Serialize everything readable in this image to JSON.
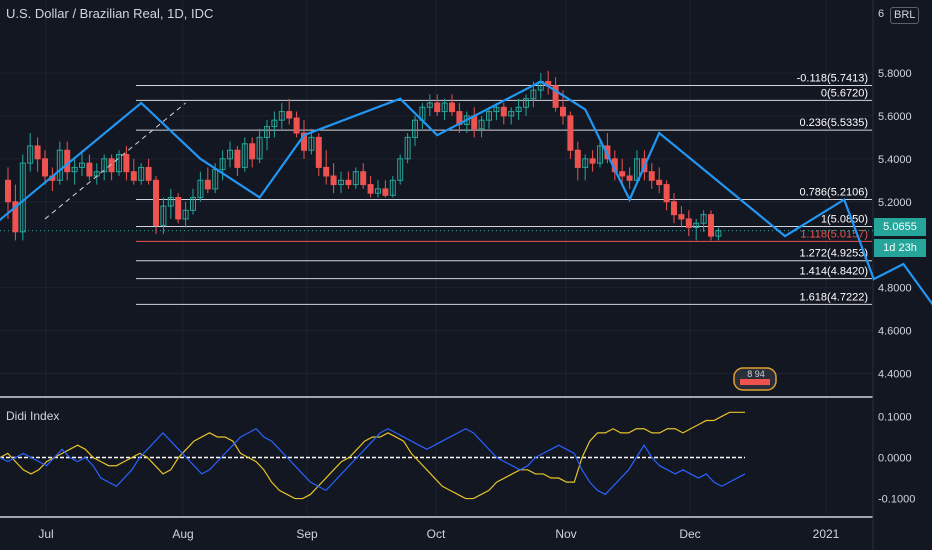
{
  "header": {
    "title": "U.S. Dollar / Brazilian Real, 1D, IDC",
    "currency": "BRL",
    "partial_glyph": "6"
  },
  "indicator": {
    "name": "Didi Index"
  },
  "price_tags": {
    "last": "5.0655",
    "countdown": "1d 23h"
  },
  "badge_text": "8 94",
  "colors": {
    "background": "#131722",
    "up": "#26a69a",
    "down": "#ef5350",
    "pattern": "#2196f3",
    "fib": "#d1d4dc",
    "last_price": "#26a69a",
    "didi_fast": "#e6c229",
    "didi_slow": "#2962ff",
    "separator": "#d1d4dc"
  },
  "chart_data": [
    {
      "type": "candlestick",
      "title": "U.S. Dollar / Brazilian Real, 1D, IDC",
      "ylim": [
        4.3,
        6.0
      ],
      "y_ticks": [
        "5.8000",
        "5.6000",
        "5.4000",
        "5.2000",
        "4.8000",
        "4.6000",
        "4.4000"
      ],
      "x_labels": [
        "Jul",
        "Aug",
        "Sep",
        "Oct",
        "Nov",
        "Dec",
        "2021"
      ],
      "ohlc": [
        [
          5.3,
          5.36,
          5.12,
          5.2
        ],
        [
          5.2,
          5.28,
          5.02,
          5.06
        ],
        [
          5.06,
          5.42,
          5.02,
          5.38
        ],
        [
          5.38,
          5.52,
          5.34,
          5.46
        ],
        [
          5.46,
          5.5,
          5.34,
          5.4
        ],
        [
          5.4,
          5.44,
          5.28,
          5.32
        ],
        [
          5.32,
          5.36,
          5.25,
          5.3
        ],
        [
          5.3,
          5.48,
          5.28,
          5.44
        ],
        [
          5.44,
          5.48,
          5.3,
          5.34
        ],
        [
          5.34,
          5.4,
          5.28,
          5.36
        ],
        [
          5.36,
          5.44,
          5.32,
          5.38
        ],
        [
          5.38,
          5.42,
          5.3,
          5.32
        ],
        [
          5.32,
          5.38,
          5.28,
          5.34
        ],
        [
          5.34,
          5.42,
          5.3,
          5.4
        ],
        [
          5.4,
          5.42,
          5.3,
          5.34
        ],
        [
          5.34,
          5.44,
          5.32,
          5.42
        ],
        [
          5.42,
          5.46,
          5.3,
          5.34
        ],
        [
          5.34,
          5.4,
          5.28,
          5.3
        ],
        [
          5.3,
          5.38,
          5.28,
          5.36
        ],
        [
          5.36,
          5.4,
          5.28,
          5.3
        ],
        [
          5.3,
          5.32,
          5.05,
          5.09
        ],
        [
          5.09,
          5.22,
          5.05,
          5.18
        ],
        [
          5.18,
          5.26,
          5.12,
          5.22
        ],
        [
          5.22,
          5.24,
          5.1,
          5.12
        ],
        [
          5.12,
          5.2,
          5.08,
          5.16
        ],
        [
          5.16,
          5.26,
          5.14,
          5.22
        ],
        [
          5.22,
          5.34,
          5.2,
          5.3
        ],
        [
          5.3,
          5.36,
          5.24,
          5.26
        ],
        [
          5.26,
          5.38,
          5.24,
          5.35
        ],
        [
          5.35,
          5.44,
          5.3,
          5.4
        ],
        [
          5.4,
          5.48,
          5.36,
          5.44
        ],
        [
          5.44,
          5.46,
          5.32,
          5.36
        ],
        [
          5.36,
          5.5,
          5.34,
          5.47
        ],
        [
          5.47,
          5.5,
          5.36,
          5.4
        ],
        [
          5.4,
          5.54,
          5.38,
          5.5
        ],
        [
          5.5,
          5.58,
          5.44,
          5.55
        ],
        [
          5.55,
          5.62,
          5.5,
          5.58
        ],
        [
          5.58,
          5.66,
          5.54,
          5.62
        ],
        [
          5.62,
          5.68,
          5.56,
          5.59
        ],
        [
          5.59,
          5.62,
          5.5,
          5.52
        ],
        [
          5.52,
          5.58,
          5.4,
          5.44
        ],
        [
          5.44,
          5.54,
          5.42,
          5.5
        ],
        [
          5.5,
          5.52,
          5.32,
          5.36
        ],
        [
          5.36,
          5.44,
          5.28,
          5.32
        ],
        [
          5.32,
          5.38,
          5.24,
          5.28
        ],
        [
          5.28,
          5.34,
          5.24,
          5.3
        ],
        [
          5.3,
          5.34,
          5.26,
          5.28
        ],
        [
          5.28,
          5.36,
          5.26,
          5.34
        ],
        [
          5.34,
          5.38,
          5.26,
          5.28
        ],
        [
          5.28,
          5.32,
          5.22,
          5.24
        ],
        [
          5.24,
          5.3,
          5.22,
          5.26
        ],
        [
          5.26,
          5.3,
          5.22,
          5.23
        ],
        [
          5.23,
          5.32,
          5.22,
          5.3
        ],
        [
          5.3,
          5.42,
          5.28,
          5.4
        ],
        [
          5.4,
          5.52,
          5.38,
          5.5
        ],
        [
          5.5,
          5.6,
          5.46,
          5.58
        ],
        [
          5.58,
          5.66,
          5.54,
          5.64
        ],
        [
          5.64,
          5.7,
          5.6,
          5.66
        ],
        [
          5.66,
          5.7,
          5.6,
          5.62
        ],
        [
          5.62,
          5.68,
          5.58,
          5.66
        ],
        [
          5.66,
          5.7,
          5.6,
          5.62
        ],
        [
          5.62,
          5.66,
          5.52,
          5.56
        ],
        [
          5.56,
          5.62,
          5.52,
          5.6
        ],
        [
          5.6,
          5.64,
          5.5,
          5.54
        ],
        [
          5.54,
          5.6,
          5.5,
          5.58
        ],
        [
          5.58,
          5.64,
          5.54,
          5.62
        ],
        [
          5.62,
          5.66,
          5.58,
          5.64
        ],
        [
          5.64,
          5.66,
          5.56,
          5.6
        ],
        [
          5.6,
          5.64,
          5.56,
          5.62
        ],
        [
          5.62,
          5.68,
          5.58,
          5.64
        ],
        [
          5.64,
          5.7,
          5.6,
          5.68
        ],
        [
          5.68,
          5.76,
          5.64,
          5.72
        ],
        [
          5.72,
          5.8,
          5.68,
          5.76
        ],
        [
          5.76,
          5.81,
          5.7,
          5.74
        ],
        [
          5.74,
          5.78,
          5.62,
          5.64
        ],
        [
          5.64,
          5.72,
          5.56,
          5.6
        ],
        [
          5.6,
          5.62,
          5.4,
          5.44
        ],
        [
          5.44,
          5.48,
          5.3,
          5.36
        ],
        [
          5.36,
          5.42,
          5.3,
          5.4
        ],
        [
          5.4,
          5.44,
          5.34,
          5.38
        ],
        [
          5.38,
          5.48,
          5.36,
          5.46
        ],
        [
          5.46,
          5.52,
          5.38,
          5.4
        ],
        [
          5.4,
          5.44,
          5.3,
          5.34
        ],
        [
          5.34,
          5.4,
          5.28,
          5.32
        ],
        [
          5.32,
          5.36,
          5.26,
          5.3
        ],
        [
          5.3,
          5.44,
          5.28,
          5.4
        ],
        [
          5.4,
          5.44,
          5.3,
          5.34
        ],
        [
          5.34,
          5.38,
          5.26,
          5.3
        ],
        [
          5.3,
          5.36,
          5.24,
          5.28
        ],
        [
          5.28,
          5.3,
          5.16,
          5.2
        ],
        [
          5.2,
          5.24,
          5.1,
          5.14
        ],
        [
          5.14,
          5.18,
          5.08,
          5.12
        ],
        [
          5.12,
          5.16,
          5.04,
          5.08
        ],
        [
          5.08,
          5.12,
          5.02,
          5.1
        ],
        [
          5.1,
          5.16,
          5.06,
          5.14
        ],
        [
          5.14,
          5.16,
          5.02,
          5.04
        ],
        [
          5.04,
          5.08,
          5.02,
          5.065
        ]
      ],
      "fib_levels": [
        {
          "label": "-0.118(5.7413)",
          "value": 5.7413
        },
        {
          "label": "0(5.6720)",
          "value": 5.672
        },
        {
          "label": "0.236(5.5335)",
          "value": 5.5335
        },
        {
          "label": "0.786(5.2106)",
          "value": 5.2106
        },
        {
          "label": "1(5.0850)",
          "value": 5.085
        },
        {
          "label": "1.118(5.0157)",
          "value": 5.0157
        },
        {
          "label": "1.272(4.9253)",
          "value": 4.9253
        },
        {
          "label": "1.414(4.8420)",
          "value": 4.842
        },
        {
          "label": "1.618(4.7222)",
          "value": 4.7222
        }
      ],
      "pattern_points": [
        [
          -2.0,
          5.09
        ],
        [
          18.0,
          5.66
        ],
        [
          26.0,
          5.4
        ],
        [
          34.0,
          5.22
        ],
        [
          40.0,
          5.51
        ],
        [
          53.0,
          5.68
        ],
        [
          58.0,
          5.51
        ],
        [
          72.0,
          5.76
        ],
        [
          78.0,
          5.63
        ],
        [
          84.0,
          5.21
        ],
        [
          88.0,
          5.52
        ],
        [
          105.0,
          5.04
        ],
        [
          113.0,
          5.21
        ],
        [
          117.0,
          4.84
        ],
        [
          121.0,
          4.91
        ],
        [
          125.0,
          4.72
        ]
      ],
      "dashed_line": [
        [
          5.0,
          5.12
        ],
        [
          24.0,
          5.66
        ]
      ],
      "last_price": 5.0655
    },
    {
      "type": "line",
      "title": "Didi Index",
      "ylim": [
        -0.14,
        0.14
      ],
      "y_ticks": [
        "0.1000",
        "0.0000",
        "-0.1000"
      ],
      "series": [
        {
          "name": "fast",
          "values": [
            0.0,
            0.01,
            -0.01,
            -0.03,
            -0.04,
            -0.03,
            -0.01,
            0.0,
            0.01,
            0.02,
            0.03,
            0.02,
            0.0,
            -0.01,
            -0.02,
            -0.02,
            -0.01,
            0.0,
            0.01,
            0.0,
            -0.02,
            -0.04,
            -0.03,
            0.0,
            0.02,
            0.04,
            0.05,
            0.06,
            0.05,
            0.05,
            0.04,
            0.01,
            0.0,
            -0.01,
            -0.03,
            -0.06,
            -0.08,
            -0.09,
            -0.1,
            -0.1,
            -0.09,
            -0.07,
            -0.05,
            -0.03,
            -0.01,
            0.0,
            0.02,
            0.04,
            0.05,
            0.05,
            0.06,
            0.05,
            0.04,
            0.01,
            -0.01,
            -0.03,
            -0.05,
            -0.07,
            -0.08,
            -0.09,
            -0.1,
            -0.1,
            -0.09,
            -0.08,
            -0.06,
            -0.05,
            -0.04,
            -0.03,
            -0.03,
            -0.04,
            -0.04,
            -0.05,
            -0.05,
            -0.06,
            -0.06,
            0.0,
            0.04,
            0.06,
            0.06,
            0.07,
            0.06,
            0.06,
            0.07,
            0.07,
            0.06,
            0.06,
            0.07,
            0.07,
            0.06,
            0.07,
            0.08,
            0.09,
            0.09,
            0.1,
            0.11,
            0.11,
            0.11
          ]
        },
        {
          "name": "slow",
          "values": [
            0.0,
            -0.01,
            0.0,
            0.01,
            0.0,
            -0.01,
            -0.02,
            0.0,
            0.02,
            0.0,
            -0.01,
            0.0,
            -0.02,
            -0.05,
            -0.06,
            -0.07,
            -0.05,
            -0.03,
            0.0,
            0.02,
            0.04,
            0.06,
            0.04,
            0.02,
            0.0,
            -0.02,
            -0.04,
            -0.03,
            -0.01,
            0.01,
            0.03,
            0.05,
            0.06,
            0.07,
            0.05,
            0.04,
            0.02,
            0.0,
            -0.02,
            -0.04,
            -0.06,
            -0.07,
            -0.08,
            -0.06,
            -0.04,
            -0.02,
            0.0,
            0.02,
            0.04,
            0.06,
            0.07,
            0.06,
            0.05,
            0.04,
            0.03,
            0.02,
            0.03,
            0.04,
            0.05,
            0.06,
            0.07,
            0.06,
            0.04,
            0.02,
            0.0,
            -0.01,
            -0.02,
            -0.03,
            -0.02,
            0.0,
            0.01,
            0.02,
            0.03,
            0.02,
            0.01,
            -0.03,
            -0.06,
            -0.08,
            -0.09,
            -0.07,
            -0.05,
            -0.03,
            0.0,
            0.03,
            0.0,
            -0.02,
            -0.03,
            -0.04,
            -0.03,
            -0.04,
            -0.05,
            -0.04,
            -0.06,
            -0.07,
            -0.06,
            -0.05,
            -0.04
          ]
        }
      ],
      "zero_line": 0.0
    }
  ]
}
